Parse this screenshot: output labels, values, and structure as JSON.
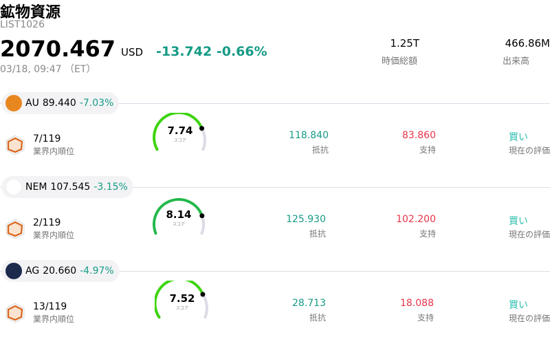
{
  "header": {
    "title": "鉱物資源",
    "code": "LIST1026",
    "price": "2070.467",
    "currency": "USD",
    "change": "-13.742",
    "change_pct": "-0.66%",
    "time": "03/18, 09:47 （ET）",
    "market_cap": "1.25T",
    "market_cap_label": "時価総額",
    "volume": "466.86M",
    "volume_label": "出来高"
  },
  "colors": {
    "positive": "#169b86",
    "negative": "#e8334a",
    "gauge": "#3dd40f",
    "buy": "#2bbfad"
  },
  "items": [
    {
      "ticker": "AU",
      "price": "89.440",
      "change_pct": "-7.03%",
      "logo_color": "#e8871f",
      "rank": "7/119",
      "rank_label": "業界内順位",
      "score": 7.74,
      "score_text": "7.74",
      "score_label": "スコア",
      "resistance": "118.840",
      "resistance_label": "抵抗",
      "support": "83.860",
      "support_label": "支持",
      "rating": "買い",
      "rating_label": "現在の評価"
    },
    {
      "ticker": "NEM",
      "price": "107.545",
      "change_pct": "-3.15%",
      "logo_color": "#ffffff",
      "rank": "2/119",
      "rank_label": "業界内順位",
      "score": 8.14,
      "score_text": "8.14",
      "score_label": "スコア",
      "resistance": "125.930",
      "resistance_label": "抵抗",
      "support": "102.200",
      "support_label": "支持",
      "rating": "買い",
      "rating_label": "現在の評価"
    },
    {
      "ticker": "AG",
      "price": "20.660",
      "change_pct": "-4.97%",
      "logo_color": "#1c2a4e",
      "rank": "13/119",
      "rank_label": "業界内順位",
      "score": 7.52,
      "score_text": "7.52",
      "score_label": "スコア",
      "resistance": "28.713",
      "resistance_label": "抵抗",
      "support": "18.088",
      "support_label": "支持",
      "rating": "買い",
      "rating_label": "現在の評価"
    }
  ]
}
